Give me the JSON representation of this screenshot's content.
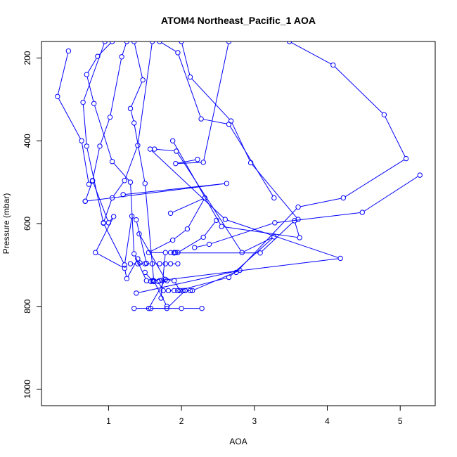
{
  "chart_data": {
    "type": "line",
    "title": "ATOM4 Northeast_Pacific_1 AOA",
    "xlabel": "AOA",
    "ylabel": "Pressure (mbar)",
    "xlim": [
      0.08,
      5.48
    ],
    "ylim": [
      1040,
      160
    ],
    "y_reversed": true,
    "x_ticks": [
      1,
      2,
      3,
      4,
      5
    ],
    "y_ticks": [
      200,
      400,
      600,
      800,
      1000
    ],
    "grid": false,
    "series_color": "#0000ff",
    "marker": "open-circle",
    "series": [
      {
        "x": [
          0.45,
          0.3,
          0.63,
          0.73,
          0.78,
          1.0,
          1.07,
          0.82,
          1.22,
          1.25,
          1.4,
          1.43
        ],
        "y": [
          183,
          293,
          400,
          505,
          496,
          598,
          583,
          670,
          708,
          733,
          685,
          695
        ]
      },
      {
        "x": [
          0.95,
          0.65,
          0.7,
          0.93,
          1.22,
          1.32,
          1.38,
          1.52
        ],
        "y": [
          160,
          307,
          413,
          599,
          700,
          582,
          591,
          696
        ]
      },
      {
        "x": [
          1.05,
          0.85,
          0.7,
          0.8,
          1.05,
          1.3,
          1.35,
          1.52
        ],
        "y": [
          160,
          196,
          240,
          310,
          450,
          500,
          673,
          738
        ]
      },
      {
        "x": [
          1.7,
          1.95,
          2.27,
          2.65,
          3.27
        ],
        "y": [
          160,
          187,
          347,
          360,
          538
        ]
      },
      {
        "x": [
          2.0,
          2.12,
          2.68,
          2.95,
          3.6
        ],
        "y": [
          160,
          246,
          352,
          453,
          590
        ]
      },
      {
        "x": [
          2.65,
          2.3,
          1.92,
          2.22
        ],
        "y": [
          160,
          452,
          455,
          445
        ]
      },
      {
        "x": [
          1.6,
          1.4,
          1.22,
          1.05,
          0.93
        ],
        "y": [
          160,
          411,
          496,
          538,
          598
        ]
      },
      {
        "x": [
          1.35,
          1.47,
          1.3,
          1.35,
          1.5,
          1.62,
          1.8
        ],
        "y": [
          160,
          253,
          322,
          357,
          503,
          738,
          800
        ]
      },
      {
        "x": [
          1.25,
          1.18,
          1.02,
          0.88,
          0.78,
          0.68
        ],
        "y": [
          160,
          197,
          343,
          413,
          497,
          546
        ]
      },
      {
        "x": [
          3.48,
          4.08,
          4.78,
          5.08,
          4.22,
          3.6,
          2.75
        ],
        "y": [
          160,
          217,
          337,
          443,
          538,
          560,
          718
        ]
      },
      {
        "x": [
          5.27,
          4.48,
          3.28,
          2.38,
          2.18
        ],
        "y": [
          483,
          573,
          598,
          650,
          658
        ]
      },
      {
        "x": [
          1.88,
          2.55,
          3.62,
          3.55,
          3.08,
          1.9
        ],
        "y": [
          400,
          607,
          634,
          593,
          671,
          671
        ]
      },
      {
        "x": [
          1.63,
          1.93,
          2.83,
          3.27,
          2.65,
          1.95
        ],
        "y": [
          420,
          425,
          670,
          632,
          730,
          762
        ]
      },
      {
        "x": [
          0.68,
          2.62,
          1.2
        ],
        "y": [
          546,
          503,
          530
        ]
      },
      {
        "x": [
          1.57,
          2.6,
          4.18,
          1.73
        ],
        "y": [
          420,
          590,
          684,
          737
        ]
      },
      {
        "x": [
          1.85,
          2.32,
          2.08,
          1.88,
          1.55,
          1.78,
          1.72
        ],
        "y": [
          575,
          538,
          613,
          640,
          670,
          670,
          780
        ]
      },
      {
        "x": [
          1.42,
          1.78,
          1.55,
          2.0,
          2.28
        ],
        "y": [
          625,
          735,
          805,
          805,
          805
        ]
      },
      {
        "x": [
          1.35,
          1.58,
          1.8,
          2.05,
          2.15,
          2.8,
          1.38
        ],
        "y": [
          805,
          805,
          805,
          762,
          762,
          713,
          768
        ]
      },
      {
        "x": [
          1.3,
          1.4,
          1.5,
          1.6,
          1.7,
          1.78,
          1.85,
          1.95
        ],
        "y": [
          697,
          697,
          697,
          697,
          697,
          697,
          697,
          697
        ]
      },
      {
        "x": [
          1.5,
          1.6,
          1.7,
          1.8,
          1.9,
          1.98,
          2.05,
          2.12
        ],
        "y": [
          718,
          738,
          738,
          738,
          738,
          762,
          762,
          762
        ]
      },
      {
        "x": [
          1.58,
          1.62,
          1.68,
          1.75,
          1.82,
          1.9,
          1.95,
          2.02
        ],
        "y": [
          740,
          740,
          740,
          762,
          762,
          762,
          762,
          762
        ]
      },
      {
        "x": [
          1.85,
          1.9,
          1.92,
          1.95,
          2.3,
          2.48
        ],
        "y": [
          670,
          670,
          670,
          670,
          633,
          592
        ]
      }
    ]
  }
}
